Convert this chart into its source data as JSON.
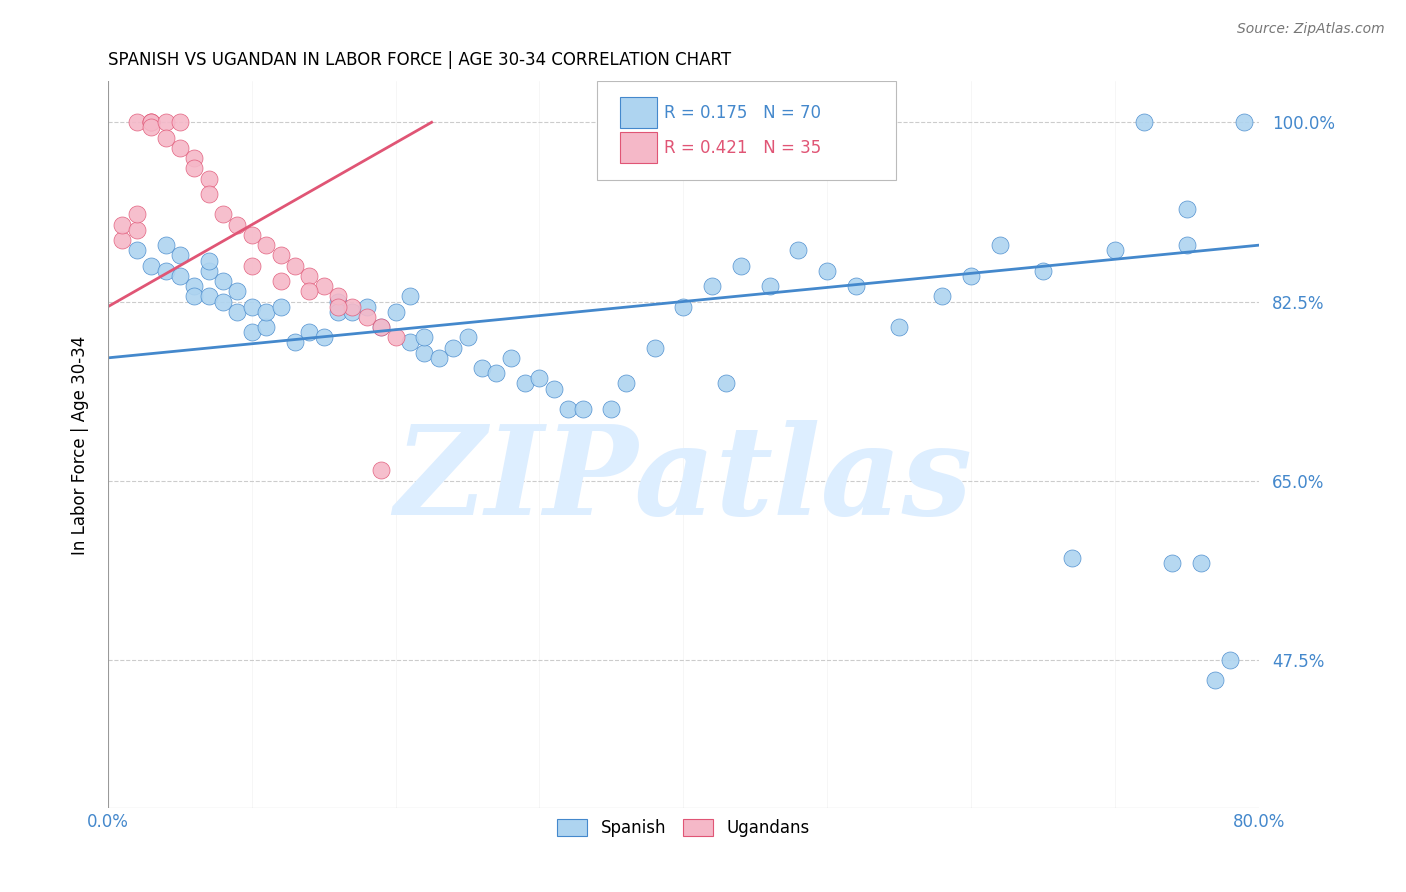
{
  "title": "SPANISH VS UGANDAN IN LABOR FORCE | AGE 30-34 CORRELATION CHART",
  "source": "Source: ZipAtlas.com",
  "ylabel": "In Labor Force | Age 30-34",
  "xmin": 0.0,
  "xmax": 0.8,
  "ymin": 0.33,
  "ymax": 1.04,
  "yticks": [
    0.475,
    0.65,
    0.825,
    1.0
  ],
  "ytick_labels": [
    "47.5%",
    "65.0%",
    "82.5%",
    "100.0%"
  ],
  "xticks": [
    0.0,
    0.1,
    0.2,
    0.3,
    0.4,
    0.5,
    0.6,
    0.7,
    0.8
  ],
  "xtick_labels": [
    "0.0%",
    "",
    "",
    "",
    "",
    "",
    "",
    "",
    "80.0%"
  ],
  "legend_blue_r": "R = 0.175",
  "legend_blue_n": "N = 70",
  "legend_pink_r": "R = 0.421",
  "legend_pink_n": "N = 35",
  "blue_color": "#aed4f0",
  "pink_color": "#f5b8c8",
  "blue_line_color": "#4488cc",
  "pink_line_color": "#e05575",
  "axis_color": "#4488cc",
  "grid_color": "#cccccc",
  "watermark_text": "ZIPatlas",
  "watermark_color": "#ddeeff",
  "blue_scatter_x": [
    0.02,
    0.03,
    0.04,
    0.04,
    0.05,
    0.05,
    0.06,
    0.06,
    0.07,
    0.07,
    0.07,
    0.08,
    0.08,
    0.09,
    0.09,
    0.1,
    0.1,
    0.11,
    0.11,
    0.12,
    0.13,
    0.14,
    0.15,
    0.16,
    0.16,
    0.17,
    0.18,
    0.19,
    0.2,
    0.21,
    0.21,
    0.22,
    0.22,
    0.23,
    0.24,
    0.25,
    0.26,
    0.27,
    0.28,
    0.29,
    0.3,
    0.31,
    0.32,
    0.33,
    0.35,
    0.36,
    0.38,
    0.4,
    0.42,
    0.43,
    0.44,
    0.46,
    0.48,
    0.5,
    0.52,
    0.55,
    0.58,
    0.6,
    0.62,
    0.65,
    0.67,
    0.7,
    0.72,
    0.74,
    0.75,
    0.75,
    0.76,
    0.77,
    0.78,
    0.79
  ],
  "blue_scatter_y": [
    0.875,
    0.86,
    0.855,
    0.88,
    0.85,
    0.87,
    0.84,
    0.83,
    0.855,
    0.865,
    0.83,
    0.845,
    0.825,
    0.815,
    0.835,
    0.795,
    0.82,
    0.8,
    0.815,
    0.82,
    0.785,
    0.795,
    0.79,
    0.825,
    0.815,
    0.815,
    0.82,
    0.8,
    0.815,
    0.83,
    0.785,
    0.775,
    0.79,
    0.77,
    0.78,
    0.79,
    0.76,
    0.755,
    0.77,
    0.745,
    0.75,
    0.74,
    0.72,
    0.72,
    0.72,
    0.745,
    0.78,
    0.82,
    0.84,
    0.745,
    0.86,
    0.84,
    0.875,
    0.855,
    0.84,
    0.8,
    0.83,
    0.85,
    0.88,
    0.855,
    0.575,
    0.875,
    1.0,
    0.57,
    0.915,
    0.88,
    0.57,
    0.455,
    0.475,
    1.0
  ],
  "pink_scatter_x": [
    0.01,
    0.01,
    0.02,
    0.02,
    0.02,
    0.03,
    0.03,
    0.03,
    0.03,
    0.04,
    0.04,
    0.05,
    0.05,
    0.06,
    0.06,
    0.07,
    0.07,
    0.08,
    0.09,
    0.1,
    0.11,
    0.12,
    0.13,
    0.14,
    0.15,
    0.16,
    0.17,
    0.18,
    0.19,
    0.2,
    0.1,
    0.12,
    0.14,
    0.16,
    0.19
  ],
  "pink_scatter_y": [
    0.885,
    0.9,
    0.895,
    0.91,
    1.0,
    1.0,
    1.0,
    1.0,
    0.995,
    1.0,
    0.985,
    1.0,
    0.975,
    0.965,
    0.955,
    0.945,
    0.93,
    0.91,
    0.9,
    0.89,
    0.88,
    0.87,
    0.86,
    0.85,
    0.84,
    0.83,
    0.82,
    0.81,
    0.8,
    0.79,
    0.86,
    0.845,
    0.835,
    0.82,
    0.66
  ],
  "blue_trend_x0": 0.0,
  "blue_trend_x1": 0.8,
  "blue_trend_y0": 0.77,
  "blue_trend_y1": 0.88,
  "pink_trend_x0": 0.0,
  "pink_trend_x1": 0.225,
  "pink_trend_y0": 0.82,
  "pink_trend_y1": 1.0
}
